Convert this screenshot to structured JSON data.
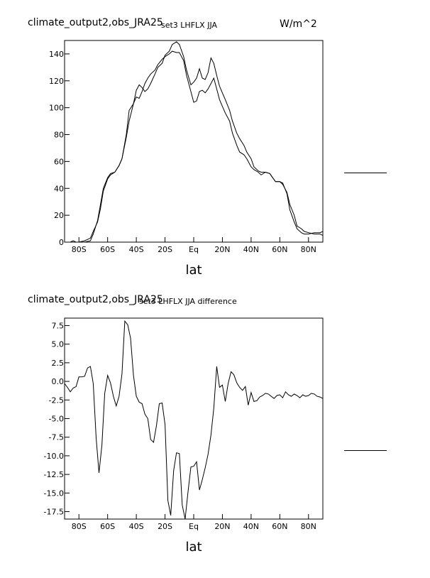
{
  "panels": [
    {
      "title_left": "climate_output2,obs_JRA25",
      "title_center": "set3 LHFLX JJA",
      "units": "W/m^2",
      "legend_line": true
    },
    {
      "title_left": "climate_output2,obs_JRA25",
      "title_center": "set3 LHFLX JJA difference",
      "legend_line": true
    }
  ],
  "chart_data": [
    {
      "type": "line",
      "xlabel": "lat",
      "xlim": [
        -90,
        90
      ],
      "ylim": [
        0,
        150
      ],
      "x_ticks": [
        -80,
        -60,
        -40,
        -20,
        0,
        20,
        40,
        60,
        80
      ],
      "x_tick_labels": [
        "80S",
        "60S",
        "40S",
        "20S",
        "Eq",
        "20N",
        "40N",
        "60N",
        "80N"
      ],
      "y_ticks": [
        0,
        20,
        40,
        60,
        80,
        100,
        120,
        140
      ],
      "y_tick_labels": [
        "0",
        "20",
        "40",
        "60",
        "80",
        "100",
        "120",
        "140"
      ],
      "grid": false,
      "series": [
        {
          "x": [
            -90,
            -86,
            -84,
            -82,
            -80,
            -76,
            -72,
            -70,
            -67,
            -65,
            -63,
            -60,
            -58,
            -55,
            -52,
            -50,
            -47,
            -45,
            -42,
            -40,
            -38,
            -36,
            -34,
            -32,
            -30,
            -27,
            -25,
            -22,
            -20,
            -17,
            -15,
            -12,
            -10,
            -7,
            -5,
            -2,
            0,
            2,
            4,
            6,
            8,
            10,
            12,
            14,
            16,
            18,
            20,
            22,
            25,
            27,
            30,
            32,
            35,
            37,
            40,
            42,
            45,
            47,
            50,
            53,
            55,
            57,
            60,
            62,
            65,
            67,
            70,
            72,
            75,
            77,
            80,
            84,
            88,
            90
          ],
          "y": [
            0,
            0,
            1,
            0,
            0,
            1,
            3,
            8,
            15,
            25,
            38,
            47,
            50,
            52,
            57,
            62,
            78,
            90,
            103,
            113,
            117,
            115,
            112,
            114,
            118,
            125,
            130,
            133,
            139,
            142,
            147,
            149,
            147,
            138,
            128,
            117,
            119,
            122,
            129,
            122,
            121,
            126,
            137,
            133,
            124,
            116,
            111,
            106,
            98,
            90,
            81,
            77,
            72,
            67,
            62,
            56,
            53,
            52,
            52,
            51,
            48,
            45,
            45,
            44,
            36,
            24,
            15,
            10,
            7,
            6,
            6,
            7,
            7,
            8
          ]
        },
        {
          "x": [
            -90,
            -86,
            -84,
            -82,
            -80,
            -76,
            -72,
            -70,
            -67,
            -65,
            -63,
            -60,
            -58,
            -55,
            -52,
            -50,
            -47,
            -45,
            -42,
            -40,
            -38,
            -36,
            -34,
            -32,
            -30,
            -27,
            -25,
            -22,
            -20,
            -17,
            -15,
            -12,
            -10,
            -7,
            -5,
            -2,
            0,
            2,
            4,
            6,
            8,
            10,
            12,
            14,
            16,
            18,
            20,
            22,
            25,
            27,
            30,
            32,
            35,
            37,
            40,
            42,
            45,
            47,
            50,
            53,
            55,
            57,
            60,
            62,
            65,
            67,
            70,
            72,
            75,
            77,
            80,
            84,
            88,
            90
          ],
          "y": [
            0,
            0,
            0,
            -1,
            0,
            0,
            1,
            6,
            16,
            28,
            40,
            48,
            51,
            52,
            57,
            62,
            80,
            98,
            103,
            108,
            107,
            112,
            118,
            122,
            125,
            128,
            132,
            136,
            138,
            140,
            142,
            141,
            141,
            135,
            124,
            112,
            104,
            105,
            112,
            113,
            111,
            114,
            118,
            122,
            114,
            106,
            101,
            96,
            90,
            81,
            72,
            67,
            65,
            62,
            56,
            54,
            52,
            50,
            52,
            51,
            48,
            45,
            45,
            43,
            37,
            28,
            20,
            12,
            10,
            8,
            7,
            6,
            6,
            5
          ]
        }
      ]
    },
    {
      "type": "line",
      "xlabel": "lat",
      "xlim": [
        -90,
        90
      ],
      "ylim": [
        -18.5,
        8.5
      ],
      "x_ticks": [
        -80,
        -60,
        -40,
        -20,
        0,
        20,
        40,
        60,
        80
      ],
      "x_tick_labels": [
        "80S",
        "60S",
        "40S",
        "20S",
        "Eq",
        "20N",
        "40N",
        "60N",
        "80N"
      ],
      "y_ticks": [
        7.5,
        5,
        2.5,
        0,
        -2.5,
        -5,
        -7.5,
        -10,
        -12.5,
        -15,
        -17.5
      ],
      "y_tick_labels": [
        "7.5",
        "5.0",
        "2.5",
        "0.0",
        "-2.5",
        "-5.0",
        "-7.5",
        "-10.0",
        "-12.5",
        "-15.0",
        "-17.5"
      ],
      "grid": false,
      "series": [
        {
          "x": [
            -90,
            -88,
            -86,
            -84,
            -82,
            -80,
            -78,
            -76,
            -74,
            -72,
            -70,
            -68,
            -66,
            -64,
            -62,
            -60,
            -58,
            -56,
            -54,
            -52,
            -50,
            -48,
            -46,
            -44,
            -42,
            -40,
            -38,
            -36,
            -34,
            -32,
            -30,
            -28,
            -26,
            -24,
            -22,
            -20,
            -18,
            -16,
            -14,
            -12,
            -10,
            -8,
            -6,
            -4,
            -2,
            0,
            2,
            4,
            6,
            8,
            10,
            12,
            14,
            16,
            18,
            20,
            22,
            24,
            26,
            28,
            30,
            32,
            34,
            36,
            38,
            40,
            42,
            44,
            46,
            48,
            50,
            52,
            54,
            56,
            58,
            60,
            62,
            64,
            66,
            68,
            70,
            72,
            74,
            76,
            78,
            80,
            82,
            84,
            86,
            88,
            90
          ],
          "y": [
            -0.3,
            -0.8,
            -1.4,
            -0.9,
            -0.7,
            0.6,
            0.6,
            0.7,
            1.8,
            2.0,
            -0.3,
            -7.6,
            -12.3,
            -8.6,
            -1.6,
            0.8,
            -0.2,
            -2.0,
            -3.3,
            -2.0,
            1.0,
            8.1,
            7.6,
            5.8,
            0.8,
            -2.0,
            -2.8,
            -3.0,
            -4.4,
            -5.0,
            -7.8,
            -8.2,
            -6.0,
            -3.0,
            -2.9,
            -5.8,
            -16.0,
            -18.0,
            -12.0,
            -9.6,
            -9.7,
            -16.6,
            -18.5,
            -14.9,
            -11.5,
            -11.4,
            -10.8,
            -14.6,
            -13.2,
            -11.6,
            -9.8,
            -7.2,
            -3.6,
            2.0,
            -0.8,
            -0.5,
            -2.7,
            -0.3,
            1.3,
            0.9,
            -0.2,
            -0.8,
            -1.2,
            -0.7,
            -3.2,
            -1.5,
            -2.7,
            -2.6,
            -2.1,
            -1.9,
            -1.6,
            -1.7,
            -2.0,
            -2.3,
            -1.9,
            -1.8,
            -2.2,
            -1.4,
            -1.8,
            -2.0,
            -1.7,
            -1.9,
            -2.2,
            -1.8,
            -2.0,
            -1.9,
            -1.6,
            -1.7,
            -2.0,
            -2.1,
            -2.3
          ]
        }
      ]
    }
  ]
}
